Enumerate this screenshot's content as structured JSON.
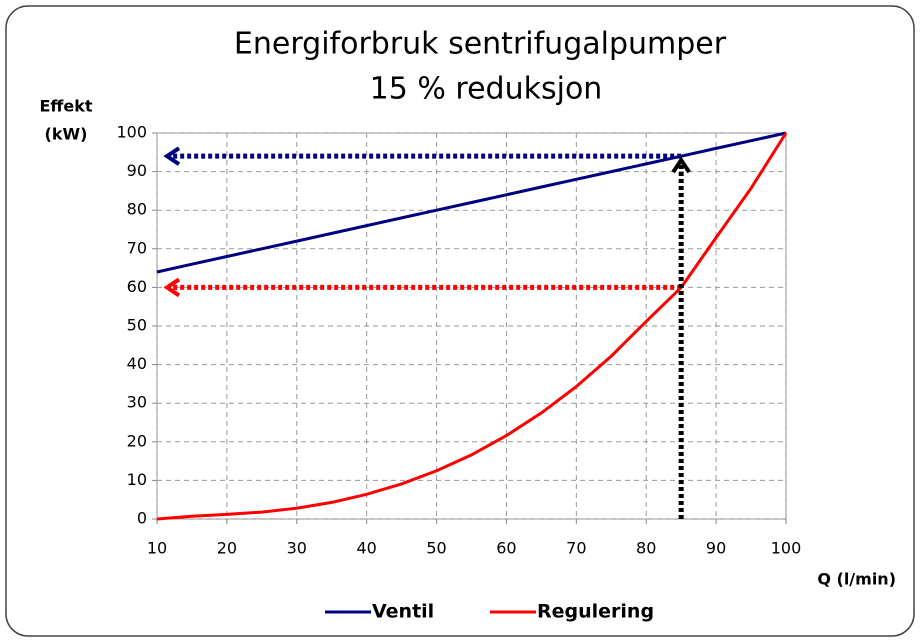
{
  "chart_data": {
    "type": "line",
    "title": "Energiforbruk sentrifugalpumper",
    "subtitle": "15 % reduksjon",
    "y_label": [
      "Effekt",
      "(kW)"
    ],
    "x_label": "Q (l/min)",
    "x": [
      10,
      15,
      20,
      25,
      30,
      35,
      40,
      45,
      50,
      55,
      60,
      65,
      70,
      75,
      80,
      85,
      90,
      95,
      100
    ],
    "series": [
      {
        "name": "Ventil",
        "color": "#000080",
        "values": [
          64,
          66,
          68,
          70,
          72,
          74,
          76,
          78,
          80,
          82,
          84,
          86,
          88,
          90,
          92,
          94,
          96,
          98,
          100
        ]
      },
      {
        "name": "Regulering",
        "color": "#ff0000",
        "values": [
          0,
          0.7,
          1.2,
          1.8,
          2.8,
          4.3,
          6.4,
          9.1,
          12.5,
          16.6,
          21.6,
          27.5,
          34.3,
          42.2,
          51.2,
          60,
          72.9,
          85.7,
          100
        ]
      }
    ],
    "highlight_x": 85,
    "highlight_color": "#000000",
    "xlim": [
      10,
      100
    ],
    "xticks": [
      10,
      20,
      30,
      40,
      50,
      60,
      70,
      80,
      90,
      100
    ],
    "ylim": [
      0,
      100
    ],
    "yticks": [
      0,
      10,
      20,
      30,
      40,
      50,
      60,
      70,
      80,
      90,
      100
    ],
    "grid": true,
    "legend": "bottom"
  }
}
